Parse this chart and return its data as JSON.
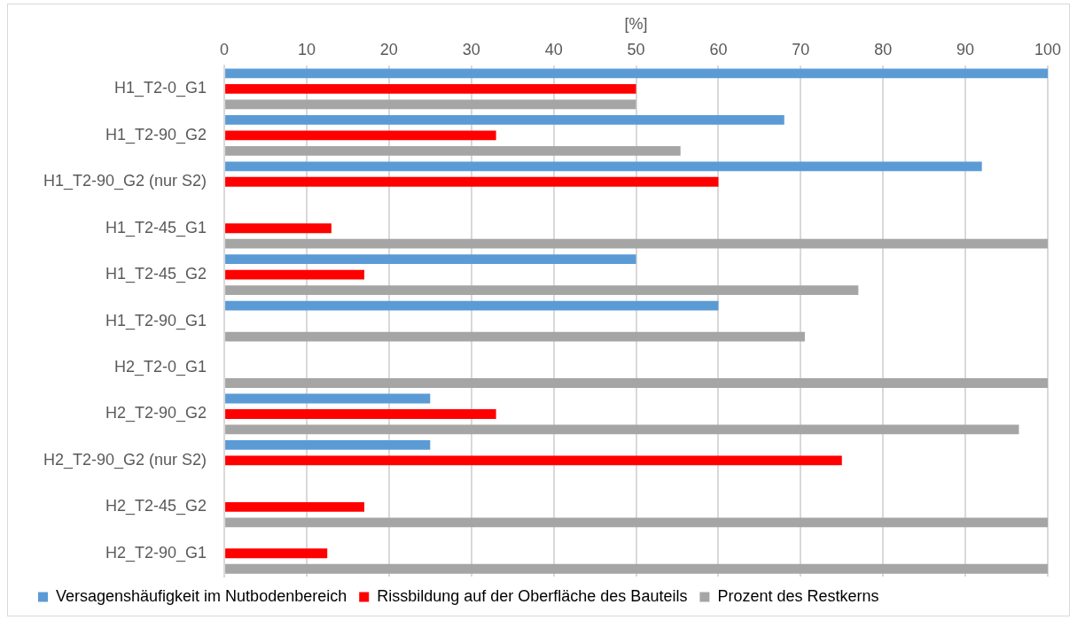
{
  "chart_data": {
    "type": "bar",
    "orientation": "horizontal",
    "xlabel": "[%]",
    "categories": [
      "H1_T2-0_G1",
      "H1_T2-90_G2",
      "H1_T2-90_G2 (nur S2)",
      "H1_T2-45_G1",
      "H1_T2-45_G2",
      "H1_T2-90_G1",
      "H2_T2-0_G1",
      "H2_T2-90_G2",
      "H2_T2-90_G2 (nur S2)",
      "H2_T2-45_G2",
      "H2_T2-90_G1"
    ],
    "series": [
      {
        "name": "Versagenshäufigkeit im Nutbodenbereich",
        "color": "#5b9bd5",
        "values": [
          100,
          68,
          92,
          null,
          50,
          60,
          null,
          25,
          25,
          null,
          null
        ]
      },
      {
        "name": "Rissbildung auf der Oberfläche des Bauteils",
        "color": "#ff0000",
        "values": [
          50,
          33,
          60,
          13,
          17,
          null,
          null,
          33,
          75,
          17,
          12.5
        ]
      },
      {
        "name": "Prozent des Restkerns",
        "color": "#a5a5a5",
        "values": [
          50,
          55.4,
          null,
          100,
          77,
          70.5,
          100,
          96.5,
          null,
          100,
          100
        ]
      }
    ],
    "xlim": [
      0,
      100
    ],
    "xticks": [
      0,
      10,
      20,
      30,
      40,
      50,
      60,
      70,
      80,
      90,
      100
    ],
    "grid": "x",
    "legend": "bottom"
  }
}
